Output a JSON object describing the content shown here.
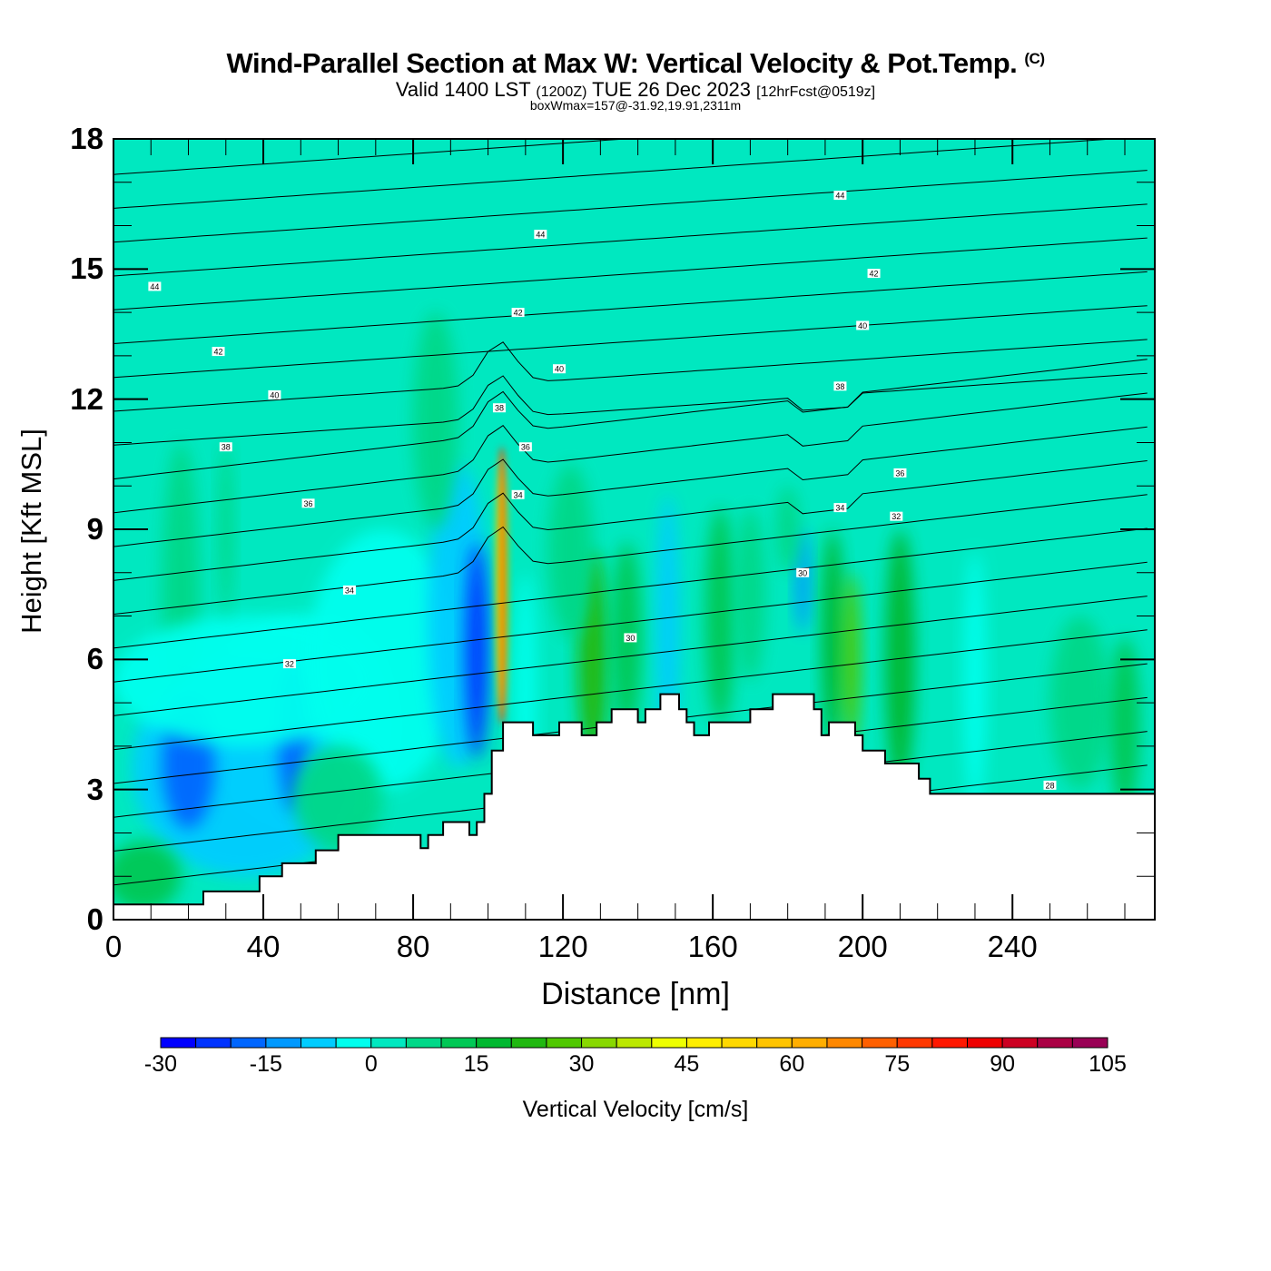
{
  "header": {
    "title": "Wind-Parallel Section at Max W: Vertical Velocity & Pot.Temp.",
    "copyright": "(C)",
    "valid_prefix": "Valid 1400 LST",
    "valid_utc": "(1200Z)",
    "valid_date": "TUE 26 Dec 2023",
    "forecast": "[12hrFcst@0519z]",
    "boxwmax": "boxWmax=157@-31.92,19.91,2311m"
  },
  "chart_data": {
    "type": "heatmap",
    "title": "Wind-Parallel Section at Max W: Vertical Velocity & Pot.Temp.",
    "xlabel": "Distance [nm]",
    "ylabel": "Height [Kft MSL]",
    "xlim": [
      0,
      278
    ],
    "ylim": [
      0,
      18
    ],
    "xticks": [
      "0",
      "40",
      "80",
      "120",
      "160",
      "200",
      "240"
    ],
    "xtick_values": [
      0,
      40,
      80,
      120,
      160,
      200,
      240
    ],
    "yticks": [
      "0",
      "3",
      "6",
      "9",
      "12",
      "15",
      "18"
    ],
    "ytick_values": [
      0,
      3,
      6,
      9,
      12,
      15,
      18
    ],
    "colorbar": {
      "title": "Vertical Velocity [cm/s]",
      "min": -30,
      "max": 105,
      "step": 5,
      "tick_labels": [
        "-30",
        "-15",
        "0",
        "15",
        "30",
        "45",
        "60",
        "75",
        "90",
        "105"
      ],
      "tick_values": [
        -30,
        -15,
        0,
        15,
        30,
        45,
        60,
        75,
        90,
        105
      ],
      "colors": [
        "#0000ff",
        "#0033ff",
        "#0066ff",
        "#0099ff",
        "#00ccff",
        "#00ffee",
        "#00e8c0",
        "#00d888",
        "#00c855",
        "#00b830",
        "#20b810",
        "#50c800",
        "#88d800",
        "#bbe800",
        "#eeff00",
        "#ffee00",
        "#ffd800",
        "#ffc400",
        "#ffae00",
        "#ff8800",
        "#ff6000",
        "#ff3800",
        "#ff1800",
        "#ee0000",
        "#cc0022",
        "#aa0044",
        "#990055"
      ]
    },
    "terrain_kft": [
      {
        "nm": 0,
        "kft": 0.35
      },
      {
        "nm": 24,
        "kft": 0.35
      },
      {
        "nm": 24,
        "kft": 0.65
      },
      {
        "nm": 39,
        "kft": 0.65
      },
      {
        "nm": 39,
        "kft": 1.0
      },
      {
        "nm": 45,
        "kft": 1.0
      },
      {
        "nm": 45,
        "kft": 1.3
      },
      {
        "nm": 54,
        "kft": 1.3
      },
      {
        "nm": 54,
        "kft": 1.6
      },
      {
        "nm": 60,
        "kft": 1.6
      },
      {
        "nm": 60,
        "kft": 1.95
      },
      {
        "nm": 82,
        "kft": 1.95
      },
      {
        "nm": 82,
        "kft": 1.65
      },
      {
        "nm": 84,
        "kft": 1.65
      },
      {
        "nm": 84,
        "kft": 1.95
      },
      {
        "nm": 88,
        "kft": 1.95
      },
      {
        "nm": 88,
        "kft": 2.25
      },
      {
        "nm": 95,
        "kft": 2.25
      },
      {
        "nm": 95,
        "kft": 1.95
      },
      {
        "nm": 97,
        "kft": 1.95
      },
      {
        "nm": 97,
        "kft": 2.25
      },
      {
        "nm": 99,
        "kft": 2.25
      },
      {
        "nm": 99,
        "kft": 2.9
      },
      {
        "nm": 101,
        "kft": 2.9
      },
      {
        "nm": 101,
        "kft": 3.9
      },
      {
        "nm": 104,
        "kft": 3.9
      },
      {
        "nm": 104,
        "kft": 4.55
      },
      {
        "nm": 112,
        "kft": 4.55
      },
      {
        "nm": 112,
        "kft": 4.25
      },
      {
        "nm": 119,
        "kft": 4.25
      },
      {
        "nm": 119,
        "kft": 4.55
      },
      {
        "nm": 125,
        "kft": 4.55
      },
      {
        "nm": 125,
        "kft": 4.25
      },
      {
        "nm": 129,
        "kft": 4.25
      },
      {
        "nm": 129,
        "kft": 4.55
      },
      {
        "nm": 133,
        "kft": 4.55
      },
      {
        "nm": 133,
        "kft": 4.85
      },
      {
        "nm": 140,
        "kft": 4.85
      },
      {
        "nm": 140,
        "kft": 4.55
      },
      {
        "nm": 142,
        "kft": 4.55
      },
      {
        "nm": 142,
        "kft": 4.85
      },
      {
        "nm": 146,
        "kft": 4.85
      },
      {
        "nm": 146,
        "kft": 5.2
      },
      {
        "nm": 151,
        "kft": 5.2
      },
      {
        "nm": 151,
        "kft": 4.85
      },
      {
        "nm": 153,
        "kft": 4.85
      },
      {
        "nm": 153,
        "kft": 4.55
      },
      {
        "nm": 155,
        "kft": 4.55
      },
      {
        "nm": 155,
        "kft": 4.25
      },
      {
        "nm": 159,
        "kft": 4.25
      },
      {
        "nm": 159,
        "kft": 4.55
      },
      {
        "nm": 170,
        "kft": 4.55
      },
      {
        "nm": 170,
        "kft": 4.85
      },
      {
        "nm": 176,
        "kft": 4.85
      },
      {
        "nm": 176,
        "kft": 5.2
      },
      {
        "nm": 187,
        "kft": 5.2
      },
      {
        "nm": 187,
        "kft": 4.85
      },
      {
        "nm": 189,
        "kft": 4.85
      },
      {
        "nm": 189,
        "kft": 4.25
      },
      {
        "nm": 191,
        "kft": 4.25
      },
      {
        "nm": 191,
        "kft": 4.55
      },
      {
        "nm": 198,
        "kft": 4.55
      },
      {
        "nm": 198,
        "kft": 4.25
      },
      {
        "nm": 200,
        "kft": 4.25
      },
      {
        "nm": 200,
        "kft": 3.9
      },
      {
        "nm": 206,
        "kft": 3.9
      },
      {
        "nm": 206,
        "kft": 3.6
      },
      {
        "nm": 215,
        "kft": 3.6
      },
      {
        "nm": 215,
        "kft": 3.25
      },
      {
        "nm": 218,
        "kft": 3.25
      },
      {
        "nm": 218,
        "kft": 2.9
      },
      {
        "nm": 278,
        "kft": 2.9
      }
    ],
    "updraft_max": {
      "nm": 104,
      "kft_from": 4.5,
      "kft_to": 10.9,
      "peak_cm_s": 90
    },
    "contour_labels": [
      {
        "text": "44",
        "nm": 11,
        "kft": 14.6
      },
      {
        "text": "42",
        "nm": 28,
        "kft": 13.1
      },
      {
        "text": "40",
        "nm": 43,
        "kft": 12.1
      },
      {
        "text": "38",
        "nm": 30,
        "kft": 10.9
      },
      {
        "text": "36",
        "nm": 52,
        "kft": 9.6
      },
      {
        "text": "34",
        "nm": 63,
        "kft": 7.6
      },
      {
        "text": "32",
        "nm": 47,
        "kft": 5.9
      },
      {
        "text": "44",
        "nm": 114,
        "kft": 15.8
      },
      {
        "text": "42",
        "nm": 108,
        "kft": 14.0
      },
      {
        "text": "40",
        "nm": 119,
        "kft": 12.7
      },
      {
        "text": "38",
        "nm": 103,
        "kft": 11.8
      },
      {
        "text": "36",
        "nm": 110,
        "kft": 10.9
      },
      {
        "text": "34",
        "nm": 108,
        "kft": 9.8
      },
      {
        "text": "30",
        "nm": 138,
        "kft": 6.5
      },
      {
        "text": "44",
        "nm": 194,
        "kft": 16.7
      },
      {
        "text": "42",
        "nm": 203,
        "kft": 14.9
      },
      {
        "text": "40",
        "nm": 200,
        "kft": 13.7
      },
      {
        "text": "38",
        "nm": 194,
        "kft": 12.3
      },
      {
        "text": "36",
        "nm": 210,
        "kft": 10.3
      },
      {
        "text": "34",
        "nm": 194,
        "kft": 9.5
      },
      {
        "text": "32",
        "nm": 209,
        "kft": 9.3
      },
      {
        "text": "30",
        "nm": 184,
        "kft": 8.0
      },
      {
        "text": "28",
        "nm": 250,
        "kft": 3.1
      }
    ]
  }
}
